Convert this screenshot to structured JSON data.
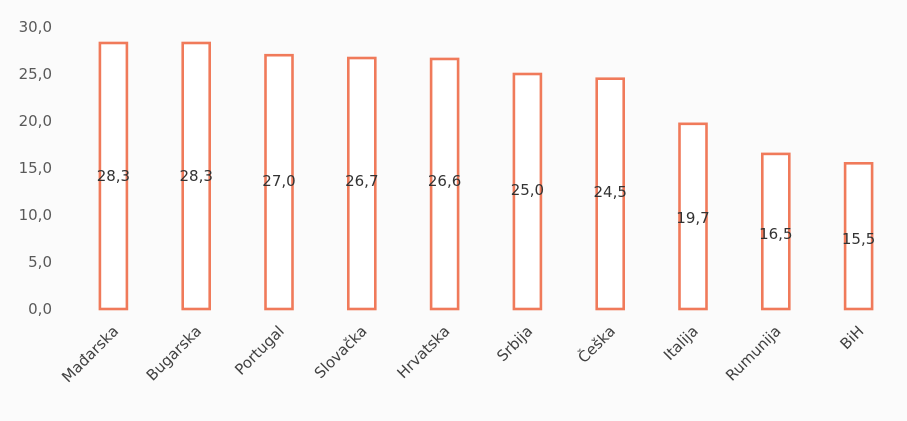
{
  "chart_data": {
    "type": "bar",
    "categories": [
      "Mađarska",
      "Bugarska",
      "Portugal",
      "Slovačka",
      "Hrvatska",
      "Srbija",
      "Češka",
      "Italija",
      "Rumunija",
      "BiH"
    ],
    "values": [
      28.3,
      28.3,
      27.0,
      26.7,
      26.6,
      25.0,
      24.5,
      19.7,
      16.5,
      15.5
    ],
    "value_labels": [
      "28,3",
      "28,3",
      "27,0",
      "26,7",
      "26,6",
      "25,0",
      "24,5",
      "19,7",
      "16,5",
      "15,5"
    ],
    "y_ticks": [
      0,
      5,
      10,
      15,
      20,
      25,
      30
    ],
    "y_tick_labels": [
      "0,0",
      "5,0",
      "10,0",
      "15,0",
      "20,0",
      "25,0",
      "30,0"
    ],
    "ylim": [
      0,
      30
    ],
    "title": "",
    "xlabel": "",
    "ylabel": "",
    "grid": false,
    "legend": false,
    "colors": {
      "bar_stroke": "#f07a5a",
      "bar_fill": "#ffffff"
    }
  }
}
